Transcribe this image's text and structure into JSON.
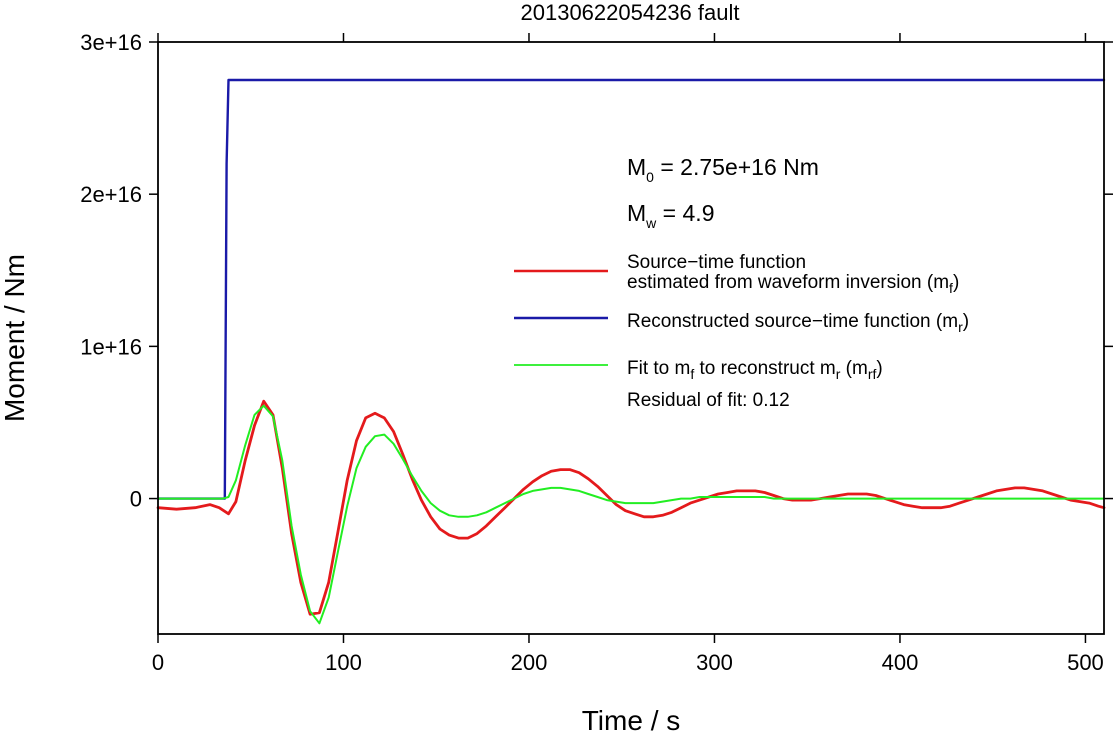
{
  "chart_data": {
    "type": "line",
    "title": "20130622054236 fault",
    "xlabel": "Time / s",
    "ylabel": "Moment / Nm",
    "xlim": [
      0,
      510
    ],
    "ylim": [
      -8900000000000000.0,
      3e+16
    ],
    "x_ticks": [
      {
        "value": 0,
        "label": "0"
      },
      {
        "value": 100,
        "label": "100"
      },
      {
        "value": 200,
        "label": "200"
      },
      {
        "value": 300,
        "label": "300"
      },
      {
        "value": 400,
        "label": "400"
      },
      {
        "value": 500,
        "label": "500"
      }
    ],
    "y_ticks": [
      {
        "value": 0,
        "label": "0"
      },
      {
        "value": 1e+16,
        "label": "1e+16"
      },
      {
        "value": 2e+16,
        "label": "2e+16"
      },
      {
        "value": 3e+16,
        "label": "3e+16"
      }
    ],
    "grid": false,
    "legend_position": "right",
    "annotations": {
      "m0": {
        "base": "M",
        "sub": "0",
        "rest": " = 2.75e+16 Nm"
      },
      "mw": {
        "base": "M",
        "sub": "w",
        "rest": " = 4.9"
      },
      "residual": "Residual of fit: 0.12"
    },
    "series": [
      {
        "name": "Source−time function estimated from waveform inversion (mf)",
        "legend_line1": "Source−time function",
        "legend_line2": "estimated from waveform inversion (m",
        "legend_sub": "f",
        "legend_close": ")",
        "color": "#e41a1c",
        "x": [
          0,
          10,
          20,
          28,
          33,
          38,
          42,
          47,
          52,
          57,
          62,
          67,
          72,
          77,
          82,
          87,
          92,
          97,
          102,
          107,
          112,
          117,
          122,
          127,
          132,
          137,
          142,
          147,
          152,
          157,
          162,
          167,
          172,
          177,
          182,
          187,
          192,
          197,
          202,
          207,
          212,
          217,
          222,
          227,
          232,
          237,
          242,
          247,
          252,
          257,
          262,
          267,
          272,
          277,
          282,
          287,
          292,
          297,
          302,
          307,
          312,
          317,
          322,
          327,
          332,
          337,
          342,
          347,
          352,
          357,
          362,
          367,
          372,
          377,
          382,
          387,
          392,
          397,
          402,
          407,
          412,
          417,
          422,
          427,
          432,
          437,
          442,
          447,
          452,
          457,
          462,
          467,
          472,
          477,
          482,
          487,
          492,
          497,
          502,
          507,
          510
        ],
        "y": [
          -600000000000000.0,
          -700000000000000.0,
          -600000000000000.0,
          -400000000000000.0,
          -600000000000000.0,
          -1000000000000000.0,
          -200000000000000.0,
          2500000000000000.0,
          4800000000000000.0,
          6400000000000000.0,
          5500000000000000.0,
          2000000000000000.0,
          -2300000000000000.0,
          -5500000000000000.0,
          -7600000000000000.0,
          -7500000000000000.0,
          -5500000000000000.0,
          -2200000000000000.0,
          1200000000000000.0,
          3800000000000000.0,
          5300000000000000.0,
          5600000000000000.0,
          5300000000000000.0,
          4400000000000000.0,
          2900000000000000.0,
          1300000000000000.0,
          -100000000000000.0,
          -1200000000000000.0,
          -2000000000000000.0,
          -2400000000000000.0,
          -2600000000000000.0,
          -2600000000000000.0,
          -2300000000000000.0,
          -1800000000000000.0,
          -1200000000000000.0,
          -600000000000000.0,
          0,
          600000000000000.0,
          1100000000000000.0,
          1500000000000000.0,
          1800000000000000.0,
          1900000000000000.0,
          1900000000000000.0,
          1700000000000000.0,
          1300000000000000.0,
          800000000000000.0,
          200000000000000.0,
          -400000000000000.0,
          -800000000000000.0,
          -1000000000000000.0,
          -1200000000000000.0,
          -1200000000000000.0,
          -1100000000000000.0,
          -900000000000000.0,
          -600000000000000.0,
          -300000000000000.0,
          -100000000000000.0,
          100000000000000.0,
          300000000000000.0,
          400000000000000.0,
          500000000000000.0,
          500000000000000.0,
          500000000000000.0,
          400000000000000.0,
          200000000000000.0,
          0,
          -100000000000000.0,
          -100000000000000.0,
          -100000000000000.0,
          0,
          100000000000000.0,
          200000000000000.0,
          300000000000000.0,
          300000000000000.0,
          300000000000000.0,
          200000000000000.0,
          0,
          -200000000000000.0,
          -400000000000000.0,
          -500000000000000.0,
          -600000000000000.0,
          -600000000000000.0,
          -600000000000000.0,
          -500000000000000.0,
          -300000000000000.0,
          -100000000000000.0,
          100000000000000.0,
          300000000000000.0,
          500000000000000.0,
          600000000000000.0,
          700000000000000.0,
          700000000000000.0,
          600000000000000.0,
          500000000000000.0,
          300000000000000.0,
          100000000000000.0,
          -100000000000000.0,
          -200000000000000.0,
          -300000000000000.0,
          -500000000000000.0,
          -600000000000000.0
        ]
      },
      {
        "name": "Reconstructed source−time function (mr)",
        "legend_line1": "Reconstructed source−time function (m",
        "legend_sub": "r",
        "legend_close": ")",
        "color": "#1a1aa8",
        "x": [
          0,
          36,
          37,
          38,
          510
        ],
        "y": [
          0,
          0,
          2.2e+16,
          2.75e+16,
          2.75e+16
        ]
      },
      {
        "name": "Fit to mf to reconstruct mr (mrf)",
        "legend_parts": [
          {
            "text": "Fit to m",
            "sub": "f"
          },
          {
            "text": " to reconstruct m",
            "sub": "r"
          },
          {
            "text": " (m",
            "sub": "rf"
          },
          {
            "text": ")",
            "sub": ""
          }
        ],
        "color": "#22ee22",
        "x": [
          0,
          35,
          38,
          42,
          47,
          52,
          57,
          62,
          67,
          72,
          77,
          82,
          87,
          92,
          97,
          102,
          107,
          112,
          117,
          122,
          127,
          132,
          137,
          142,
          147,
          152,
          157,
          162,
          167,
          172,
          177,
          182,
          187,
          192,
          197,
          202,
          207,
          212,
          217,
          222,
          227,
          232,
          237,
          242,
          247,
          252,
          257,
          262,
          267,
          272,
          277,
          282,
          287,
          292,
          297,
          302,
          307,
          312,
          317,
          322,
          327,
          332,
          340,
          360,
          400,
          450,
          510
        ],
        "y": [
          0,
          0,
          100000000000000.0,
          1200000000000000.0,
          3500000000000000.0,
          5500000000000000.0,
          6100000000000000.0,
          5400000000000000.0,
          2500000000000000.0,
          -1800000000000000.0,
          -5000000000000000.0,
          -7400000000000000.0,
          -8200000000000000.0,
          -6500000000000000.0,
          -3500000000000000.0,
          -500000000000000.0,
          2000000000000000.0,
          3400000000000000.0,
          4100000000000000.0,
          4200000000000000.0,
          3600000000000000.0,
          2600000000000000.0,
          1500000000000000.0,
          500000000000000.0,
          -300000000000000.0,
          -800000000000000.0,
          -1100000000000000.0,
          -1200000000000000.0,
          -1200000000000000.0,
          -1100000000000000.0,
          -900000000000000.0,
          -600000000000000.0,
          -300000000000000.0,
          0,
          300000000000000.0,
          500000000000000.0,
          600000000000000.0,
          700000000000000.0,
          700000000000000.0,
          600000000000000.0,
          500000000000000.0,
          300000000000000.0,
          100000000000000.0,
          -100000000000000.0,
          -200000000000000.0,
          -300000000000000.0,
          -300000000000000.0,
          -300000000000000.0,
          -300000000000000.0,
          -200000000000000.0,
          -100000000000000.0,
          0,
          0,
          100000000000000.0,
          100000000000000.0,
          100000000000000.0,
          100000000000000.0,
          100000000000000.0,
          100000000000000.0,
          100000000000000.0,
          100000000000000.0,
          0,
          0,
          0,
          0,
          0,
          0
        ]
      }
    ]
  }
}
